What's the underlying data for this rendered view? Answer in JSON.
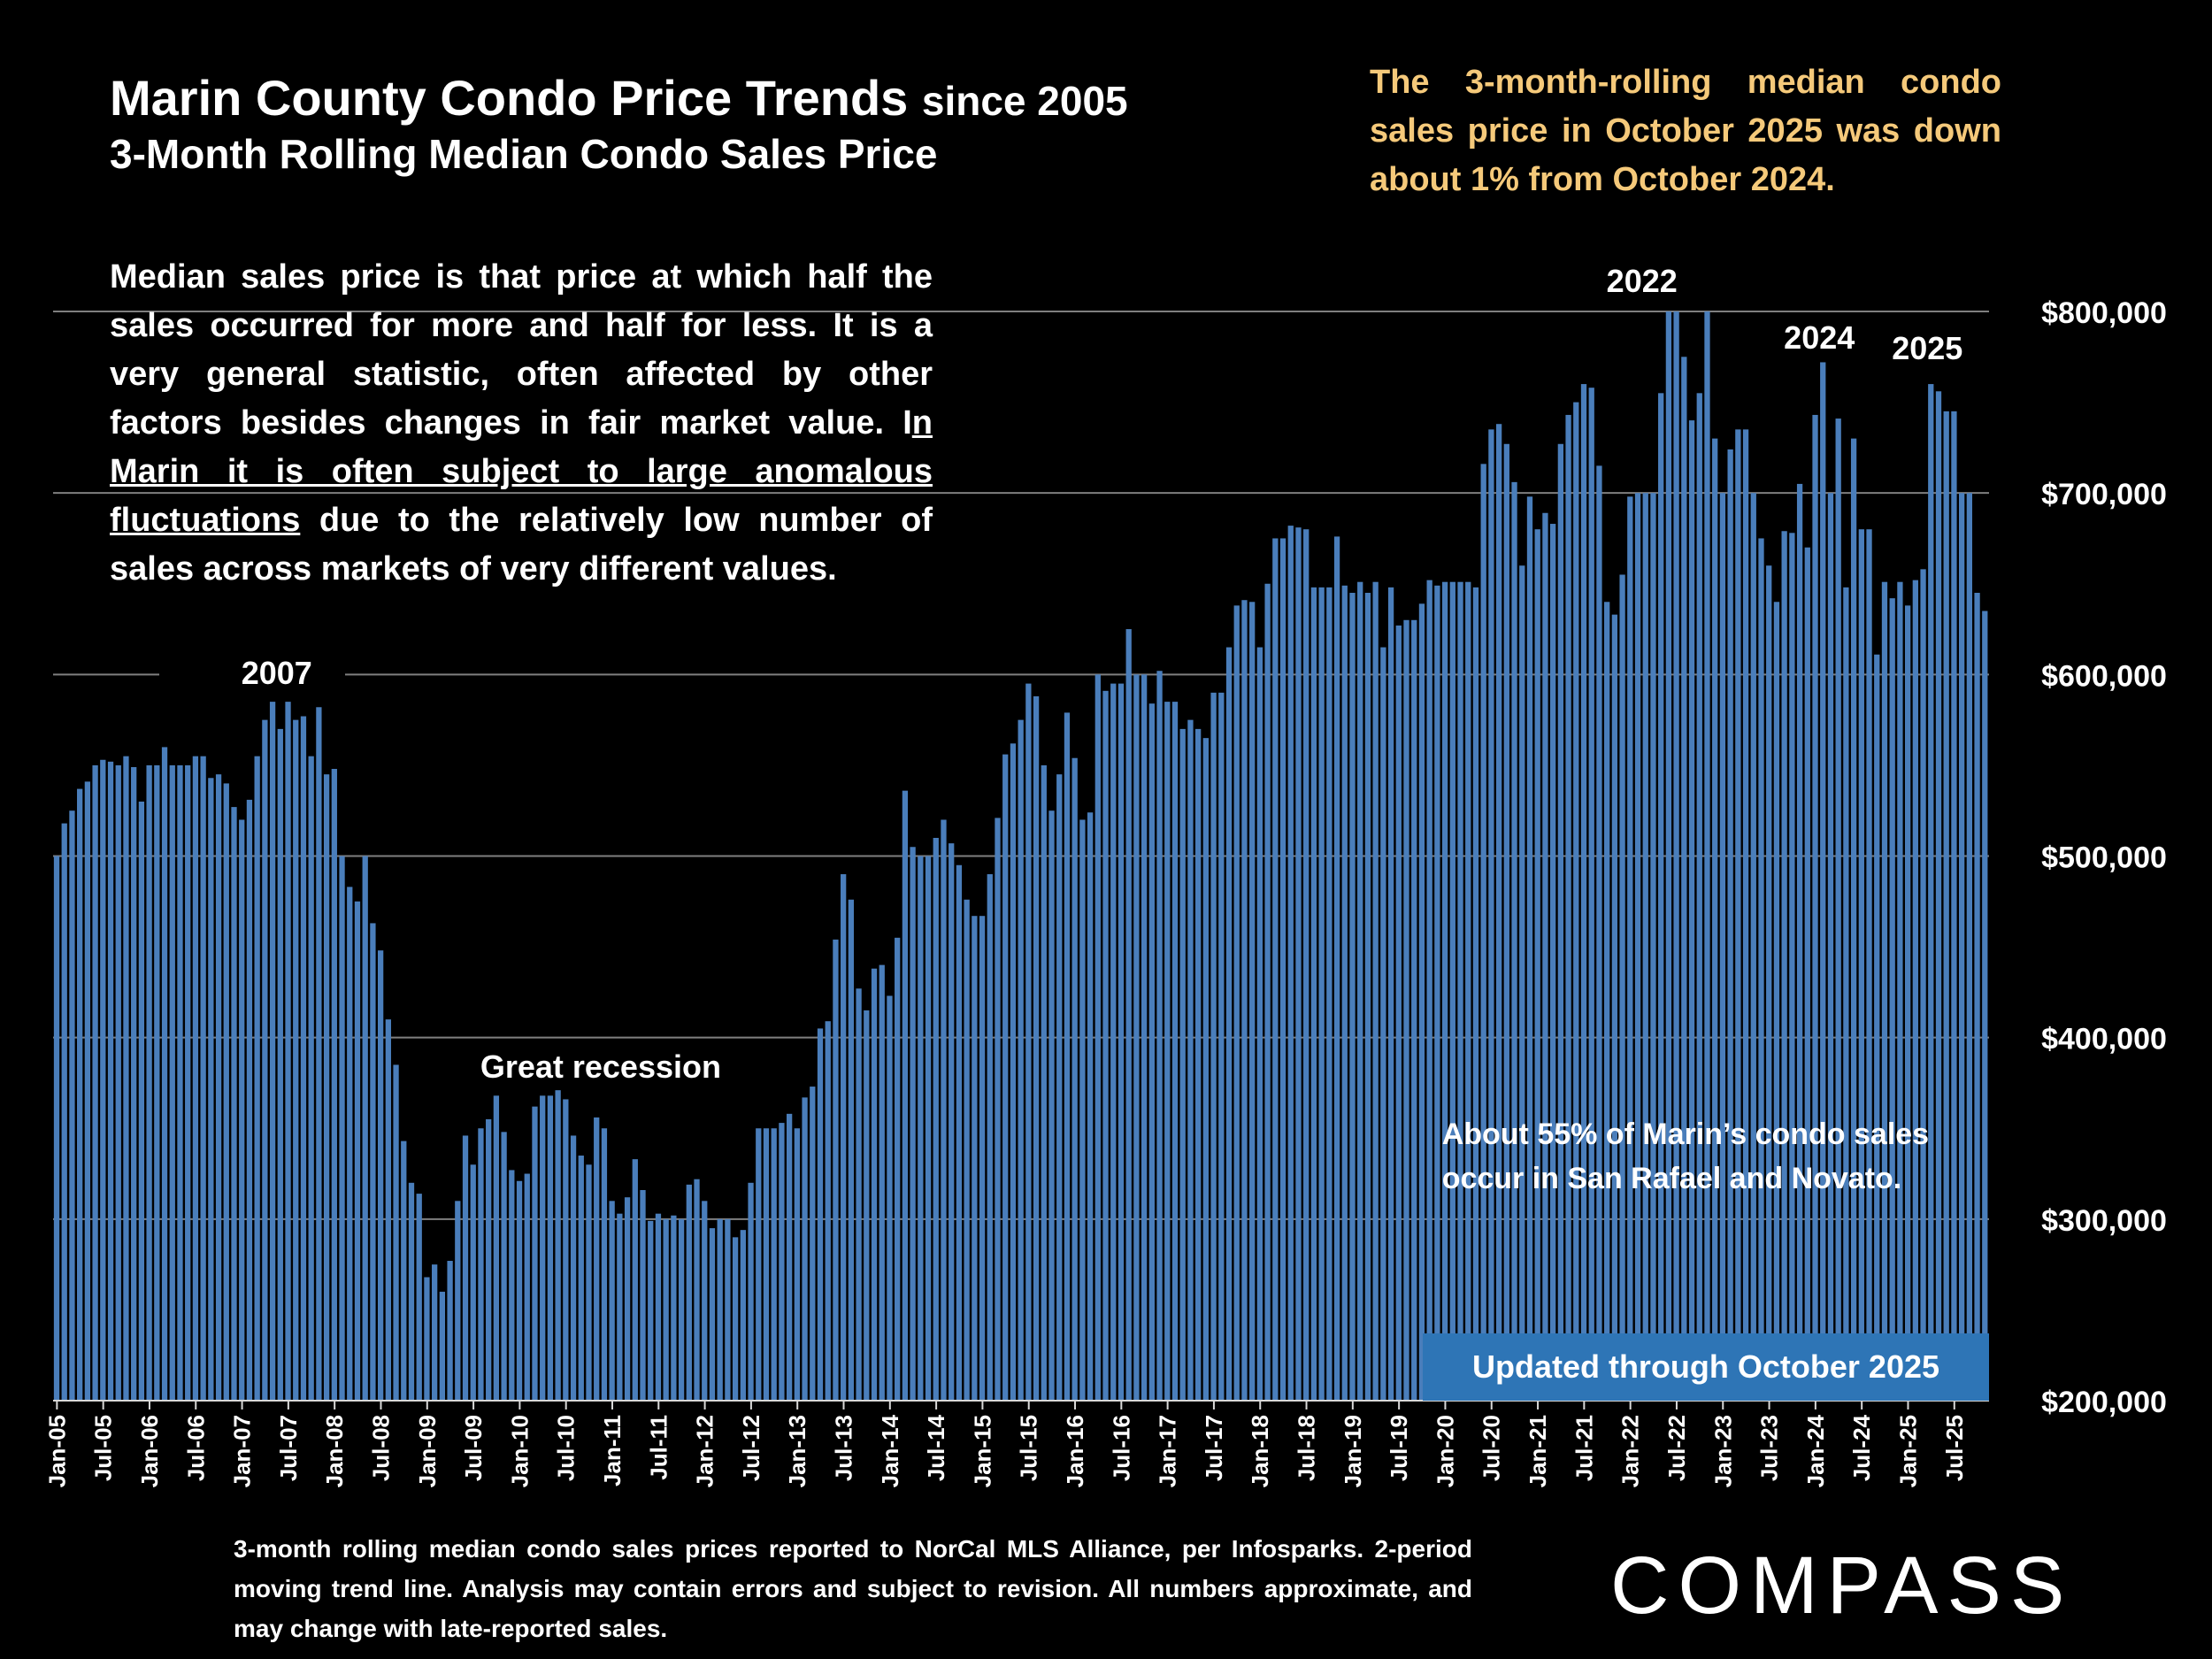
{
  "header": {
    "title": "Marin County Condo Price Trends",
    "title_suffix": "since 2005",
    "subtitle": "3-Month Rolling Median Condo Sales Price"
  },
  "callout": "The 3-month-rolling median condo sales price in October 2025 was down about 1% from October 2024.",
  "note": {
    "part1": "Median sales price is that price at which half the sales occurred for more and half for less. It is a very general statistic, often affected by other factors besides changes in fair market value. I",
    "underlined": "n Marin it is often subject to large anomalous fluctuations",
    "part2": " due to the relatively low number of sales across markets of very different values."
  },
  "footnote": "3-month rolling median condo sales prices reported to NorCal MLS Alliance, per Infosparks. 2-period moving trend line. Analysis may contain errors and subject to revision. All numbers approximate, and may change with late-reported sales.",
  "logo": "COMPASS",
  "colors": {
    "bar": "#4a7ebb",
    "badge": "#2e75b6",
    "callout": "#f5c97a",
    "grid": "#7f7f7f",
    "background": "#000000"
  },
  "chart_data": {
    "type": "bar",
    "start": "Jan-05",
    "end": "Oct-25",
    "x_tick_labels": [
      "Jan-05",
      "Jul-05",
      "Jan-06",
      "Jul-06",
      "Jan-07",
      "Jul-07",
      "Jan-08",
      "Jul-08",
      "Jan-09",
      "Jul-09",
      "Jan-10",
      "Jul-10",
      "Jan-11",
      "Jul-11",
      "Jan-12",
      "Jul-12",
      "Jan-13",
      "Jul-13",
      "Jan-14",
      "Jul-14",
      "Jan-15",
      "Jul-15",
      "Jan-16",
      "Jul-16",
      "Jan-17",
      "Jul-17",
      "Jan-18",
      "Jul-18",
      "Jan-19",
      "Jul-19",
      "Jan-20",
      "Jul-20",
      "Jan-21",
      "Jul-21",
      "Jan-22",
      "Jul-22",
      "Jan-23",
      "Jul-23",
      "Jan-24",
      "Jul-24",
      "Jan-25",
      "Jul-25"
    ],
    "y_tick_labels": [
      "$200,000",
      "$300,000",
      "$400,000",
      "$500,000",
      "$600,000",
      "$700,000",
      "$800,000"
    ],
    "ylim": [
      200000,
      800000
    ],
    "y_ticks": [
      200000,
      300000,
      400000,
      500000,
      600000,
      700000,
      800000
    ],
    "grid": true,
    "annotations": [
      {
        "text": "2007",
        "at": "Jun-07"
      },
      {
        "text": "Great recession",
        "at": "Dec-10"
      },
      {
        "text": "2022",
        "at": "Mar-22"
      },
      {
        "text": "2024",
        "at": "Feb-24"
      },
      {
        "text": "2025",
        "at": "Apr-25"
      },
      {
        "text": "About 55% of Marin’s condo sales occur in San Rafael and Novato.",
        "at": "Jan-21"
      }
    ],
    "badge": "Updated through October 2025",
    "values": [
      500000,
      518000,
      525000,
      537000,
      541000,
      550000,
      553000,
      552000,
      550000,
      555000,
      549000,
      530000,
      550000,
      550000,
      560000,
      550000,
      550000,
      550000,
      555000,
      555000,
      543000,
      545000,
      540000,
      527000,
      520000,
      531000,
      555000,
      575000,
      585000,
      570000,
      585000,
      575000,
      577000,
      555000,
      582000,
      545000,
      548000,
      500000,
      483000,
      475000,
      500000,
      463000,
      448000,
      410000,
      385000,
      343000,
      320000,
      314000,
      268000,
      275000,
      260000,
      277000,
      310000,
      346000,
      330000,
      350000,
      355000,
      368000,
      348000,
      327000,
      321000,
      325000,
      362000,
      368000,
      368000,
      371000,
      366000,
      346000,
      335000,
      330000,
      356000,
      350000,
      310000,
      303000,
      312000,
      333000,
      316000,
      299000,
      303000,
      300000,
      302000,
      300000,
      319000,
      322000,
      310000,
      295000,
      300000,
      300000,
      290000,
      294000,
      320000,
      350000,
      350000,
      350000,
      353000,
      358000,
      350000,
      367000,
      373000,
      405000,
      409000,
      454000,
      490000,
      476000,
      427000,
      415000,
      438000,
      440000,
      423000,
      455000,
      536000,
      505000,
      500000,
      500000,
      510000,
      520000,
      507000,
      495000,
      476000,
      467000,
      467000,
      490000,
      521000,
      556000,
      562000,
      575000,
      595000,
      588000,
      550000,
      525000,
      545000,
      579000,
      554000,
      520000,
      524000,
      600000,
      591000,
      595000,
      595000,
      625000,
      600000,
      600000,
      584000,
      602000,
      585000,
      585000,
      570000,
      575000,
      570000,
      565000,
      590000,
      590000,
      615000,
      638000,
      641000,
      640000,
      615000,
      650000,
      675000,
      675000,
      682000,
      681000,
      680000,
      648000,
      648000,
      648000,
      676000,
      649000,
      645000,
      651000,
      645000,
      651000,
      615000,
      648000,
      627000,
      630000,
      630000,
      639000,
      652000,
      649000,
      651000,
      651000,
      651000,
      651000,
      648000,
      716000,
      735000,
      738000,
      727000,
      706000,
      660000,
      698000,
      680000,
      689000,
      683000,
      727000,
      743000,
      750000,
      760000,
      758000,
      715000,
      640000,
      633000,
      655000,
      698000,
      700000,
      700000,
      700000,
      755000,
      800000,
      800000,
      775000,
      740000,
      755000,
      800000,
      730000,
      700000,
      724000,
      735000,
      735000,
      700000,
      675000,
      660000,
      640000,
      679000,
      678000,
      705000,
      670000,
      743000,
      772000,
      700000,
      741000,
      648000,
      730000,
      680000,
      680000,
      611000,
      651000,
      642000,
      651000,
      638000,
      652000,
      658000,
      760000,
      756000,
      745000,
      745000,
      700000,
      700000,
      645000,
      635000
    ]
  }
}
